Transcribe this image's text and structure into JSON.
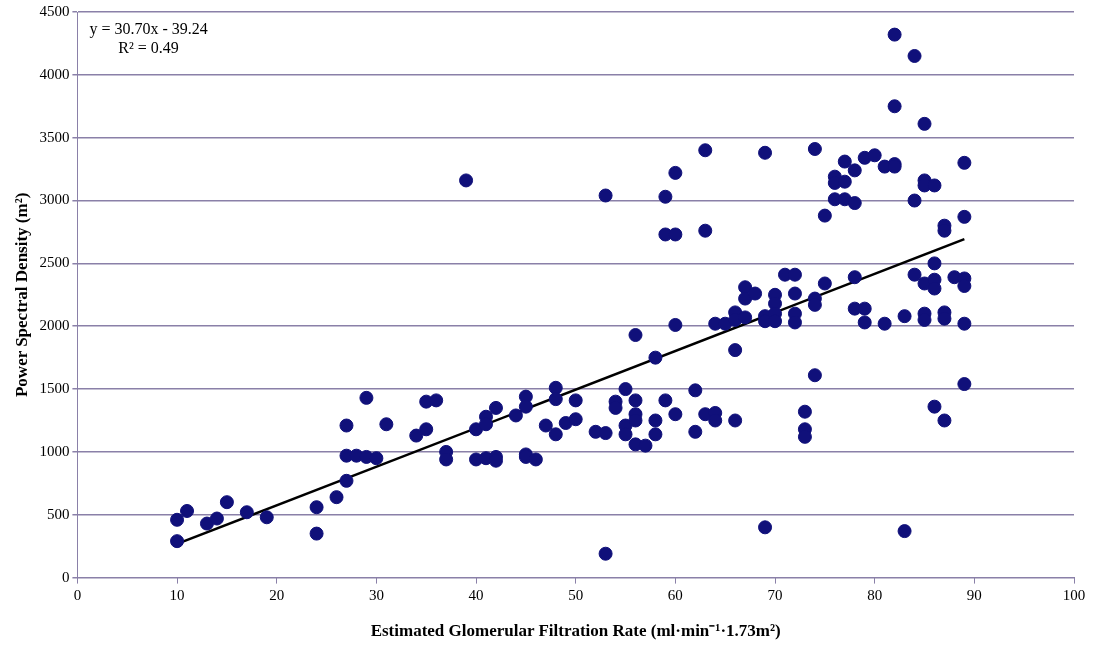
{
  "chart_data": {
    "type": "scatter",
    "xlabel": "Estimated Glomerular Filtration Rate (ml·min⁻¹·1.73m²)",
    "ylabel": "Power Spectral Density (m²)",
    "annotations": [
      "y = 30.70x - 39.24",
      "R² = 0.49"
    ],
    "xlim": [
      0,
      100
    ],
    "xticks": [
      0,
      10,
      20,
      30,
      40,
      50,
      60,
      70,
      80,
      90,
      100
    ],
    "ylim": [
      0,
      4500
    ],
    "yticks": [
      0,
      500,
      1000,
      1500,
      2000,
      2500,
      3000,
      3500,
      4000,
      4500
    ],
    "grid": "y",
    "marker": "circle",
    "series": [
      {
        "color": "#10107a",
        "x": [
          10,
          10,
          11,
          13,
          14,
          15,
          17,
          19,
          24,
          24,
          26,
          27,
          27,
          27,
          28,
          29,
          29,
          30,
          31,
          34,
          35,
          35,
          36,
          37,
          37,
          39,
          40,
          40,
          41,
          41,
          41,
          42,
          42,
          42,
          44,
          45,
          45,
          45,
          45,
          46,
          47,
          48,
          48,
          48,
          49,
          50,
          50,
          52,
          53,
          53,
          53,
          54,
          54,
          55,
          55,
          55,
          56,
          56,
          56,
          56,
          56,
          57,
          58,
          58,
          58,
          59,
          59,
          59,
          60,
          60,
          60,
          60,
          62,
          62,
          63,
          63,
          63,
          64,
          64,
          64,
          65,
          66,
          66,
          66,
          66,
          67,
          67,
          67,
          68,
          69,
          69,
          69,
          69,
          70,
          70,
          70,
          70,
          71,
          72,
          72,
          72,
          72,
          73,
          73,
          73,
          74,
          74,
          74,
          74,
          75,
          75,
          76,
          76,
          76,
          77,
          77,
          77,
          78,
          78,
          78,
          78,
          79,
          79,
          79,
          80,
          81,
          81,
          82,
          82,
          82,
          82,
          83,
          83,
          84,
          84,
          84,
          85,
          85,
          85,
          85,
          85,
          85,
          86,
          86,
          86,
          86,
          86,
          87,
          87,
          87,
          87,
          87,
          88,
          89,
          89,
          89,
          89,
          89,
          89
        ],
        "values": [
          460,
          290,
          530,
          430,
          470,
          600,
          520,
          480,
          560,
          350,
          640,
          770,
          1210,
          970,
          970,
          1430,
          960,
          950,
          1220,
          1130,
          1180,
          1400,
          1410,
          1000,
          940,
          3160,
          1180,
          940,
          1280,
          950,
          1220,
          960,
          930,
          1350,
          1290,
          1440,
          1360,
          980,
          960,
          940,
          1210,
          1510,
          1420,
          1140,
          1230,
          1260,
          1410,
          1160,
          3040,
          1150,
          190,
          1400,
          1350,
          1500,
          1210,
          1140,
          1930,
          1300,
          1250,
          1060,
          1410,
          1050,
          1750,
          1140,
          1250,
          3030,
          2730,
          1410,
          2730,
          3220,
          2010,
          1300,
          1490,
          1160,
          3400,
          2760,
          1300,
          2020,
          1310,
          1250,
          2020,
          2110,
          2050,
          1810,
          1250,
          2310,
          2220,
          2070,
          2260,
          3380,
          2080,
          2040,
          400,
          2250,
          2180,
          2100,
          2040,
          2410,
          2410,
          2260,
          2100,
          2030,
          1320,
          1180,
          1120,
          3410,
          2220,
          2170,
          1610,
          2880,
          2340,
          3190,
          3140,
          3010,
          3310,
          3150,
          3010,
          3240,
          2980,
          2390,
          2140,
          3340,
          2140,
          2030,
          3360,
          3270,
          2020,
          4320,
          3750,
          3290,
          3270,
          2080,
          370,
          4150,
          3000,
          2410,
          3610,
          3160,
          3120,
          2340,
          2100,
          2050,
          3120,
          2500,
          2370,
          2300,
          1360,
          2800,
          2760,
          2110,
          2060,
          1250,
          2390,
          3300,
          2870,
          2380,
          2320,
          2020,
          1540
        ]
      },
      {
        "type": "line",
        "color": "#000000",
        "marker": "none",
        "x": [
          10,
          89
        ],
        "values": [
          268,
          2693
        ]
      }
    ]
  }
}
